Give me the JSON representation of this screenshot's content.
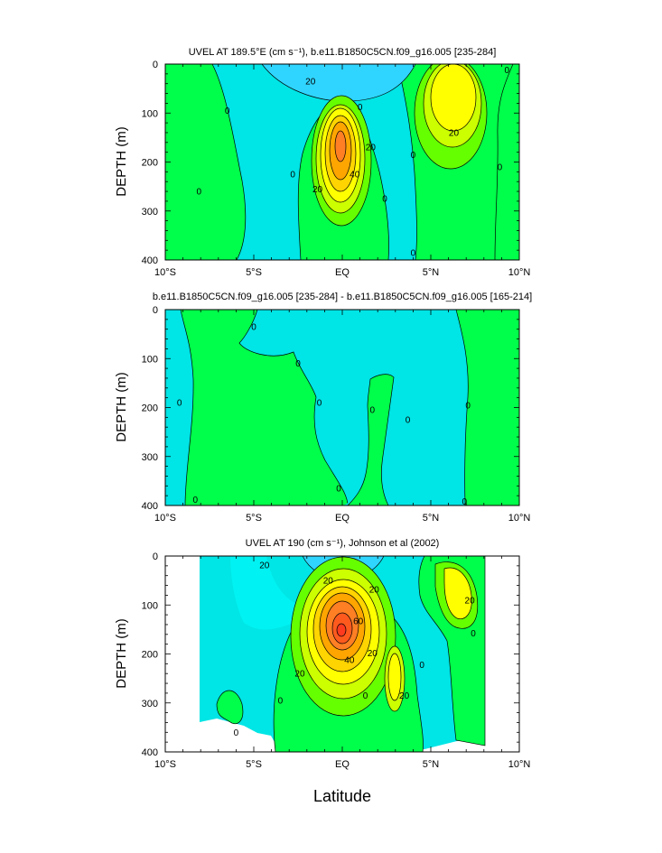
{
  "colors": {
    "bg": "#ffffff",
    "levels": [
      "#00e5e5",
      "#00f0b8",
      "#00ff4a",
      "#66ff00",
      "#ccff00",
      "#ffff00",
      "#ffd400",
      "#ffa500",
      "#ff7f24",
      "#ff5a1e",
      "#ff3a1e"
    ],
    "neg": "#2fd5ff",
    "neg2": "#1faaff"
  },
  "icons": [
    "none"
  ],
  "xlabel": "Latitude",
  "chart_data": [
    {
      "type": "contour",
      "title": "UVEL AT 189.5°E (cm s⁻¹), b.e11.B1850C5CN.f09_g16.005 [235-284]",
      "ylabel": "DEPTH (m)",
      "xlim": [
        -10,
        10
      ],
      "ylim": [
        400,
        0
      ],
      "xticks": [
        "10°S",
        "5°S",
        "EQ",
        "5°N",
        "10°N"
      ],
      "yticks": [
        "0",
        "100",
        "200",
        "300",
        "400"
      ],
      "contour_labels": [
        {
          "text": "20",
          "lat": -1.8,
          "depth": 35
        },
        {
          "text": "0",
          "lat": -6.5,
          "depth": 95
        },
        {
          "text": "0",
          "lat": 1.0,
          "depth": 88
        },
        {
          "text": "0",
          "lat": -2.8,
          "depth": 225
        },
        {
          "text": "0",
          "lat": -8.1,
          "depth": 260
        },
        {
          "text": "20",
          "lat": 1.6,
          "depth": 170
        },
        {
          "text": "40",
          "lat": 0.7,
          "depth": 225
        },
        {
          "text": "20",
          "lat": -1.4,
          "depth": 255
        },
        {
          "text": "0",
          "lat": 2.4,
          "depth": 275
        },
        {
          "text": "0",
          "lat": 4.0,
          "depth": 185
        },
        {
          "text": "20",
          "lat": 6.3,
          "depth": 140
        },
        {
          "text": "0",
          "lat": 8.9,
          "depth": 210
        },
        {
          "text": "0",
          "lat": 9.3,
          "depth": 12
        },
        {
          "text": "0",
          "lat": 4.0,
          "depth": 385
        }
      ],
      "features": {
        "euc_core": {
          "lat": -0.1,
          "depth": 160,
          "max_level": 60
        },
        "nec_core": {
          "lat": 6.3,
          "depth": 85,
          "max_level": 30
        },
        "sec_surface": {
          "lat": -0.5,
          "depth": 0
        }
      }
    },
    {
      "type": "contour",
      "title": "b.e11.B1850C5CN.f09_g16.005 [235-284] - b.e11.B1850C5CN.f09_g16.005 [165-214]",
      "ylabel": "DEPTH (m)",
      "xlim": [
        -10,
        10
      ],
      "ylim": [
        400,
        0
      ],
      "xticks": [
        "10°S",
        "5°S",
        "EQ",
        "5°N",
        "10°N"
      ],
      "yticks": [
        "0",
        "100",
        "200",
        "300",
        "400"
      ],
      "contour_labels": [
        {
          "text": "0",
          "lat": -5.0,
          "depth": 35
        },
        {
          "text": "0",
          "lat": -2.5,
          "depth": 110
        },
        {
          "text": "0",
          "lat": -9.2,
          "depth": 190
        },
        {
          "text": "0",
          "lat": -1.3,
          "depth": 190
        },
        {
          "text": "0",
          "lat": 1.7,
          "depth": 205
        },
        {
          "text": "0",
          "lat": 3.7,
          "depth": 225
        },
        {
          "text": "0",
          "lat": -0.2,
          "depth": 365
        },
        {
          "text": "0",
          "lat": -8.3,
          "depth": 388
        },
        {
          "text": "0",
          "lat": 7.1,
          "depth": 195
        },
        {
          "text": "0",
          "lat": 6.9,
          "depth": 392
        }
      ]
    },
    {
      "type": "contour",
      "title": "UVEL AT 190 (cm s⁻¹), Johnson et al (2002)",
      "ylabel": "DEPTH (m)",
      "xlim": [
        -10,
        10
      ],
      "ylim": [
        400,
        0
      ],
      "xticks": [
        "10°S",
        "5°S",
        "EQ",
        "5°N",
        "10°N"
      ],
      "yticks": [
        "0",
        "100",
        "200",
        "300",
        "400"
      ],
      "contour_labels": [
        {
          "text": "20",
          "lat": -4.4,
          "depth": 18
        },
        {
          "text": "20",
          "lat": -0.8,
          "depth": 50
        },
        {
          "text": "20",
          "lat": 1.8,
          "depth": 68
        },
        {
          "text": "60",
          "lat": 0.9,
          "depth": 133
        },
        {
          "text": "40",
          "lat": 0.4,
          "depth": 212
        },
        {
          "text": "20",
          "lat": 1.7,
          "depth": 198
        },
        {
          "text": "20",
          "lat": -2.4,
          "depth": 240
        },
        {
          "text": "20",
          "lat": 3.5,
          "depth": 285
        },
        {
          "text": "20",
          "lat": 7.2,
          "depth": 90
        },
        {
          "text": "0",
          "lat": 4.5,
          "depth": 222
        },
        {
          "text": "0",
          "lat": 7.4,
          "depth": 158
        },
        {
          "text": "0",
          "lat": 1.3,
          "depth": 285
        },
        {
          "text": "0",
          "lat": -3.5,
          "depth": 295
        },
        {
          "text": "0",
          "lat": -6.0,
          "depth": 360
        }
      ],
      "features": {
        "euc_core": {
          "lat": 0.0,
          "depth": 150,
          "max_level": 90
        },
        "data_coverage_lat": [
          -8.0,
          8.0
        ]
      }
    }
  ]
}
